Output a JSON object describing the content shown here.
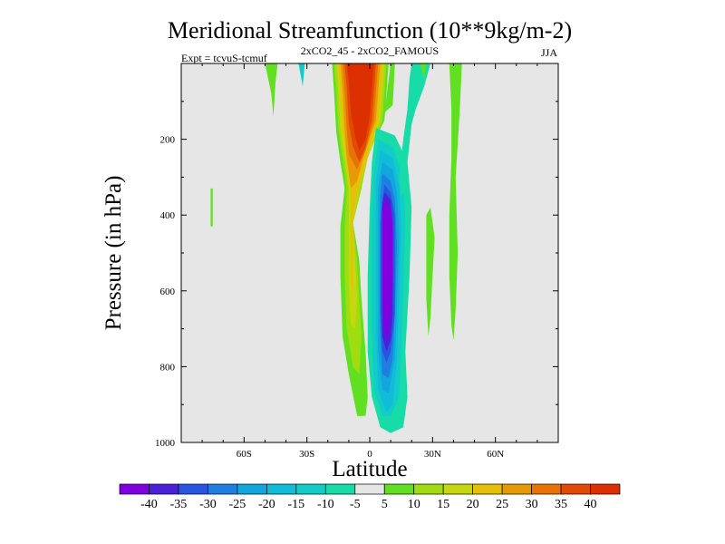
{
  "chart_data": {
    "type": "heatmap",
    "title": "Meridional Streamfunction (10**9kg/m-2)",
    "subtitle_left": "Expt = tcvuS-tcmuf",
    "subtitle_center": "2xCO2_45 - 2xCO2_FAMOUS",
    "subtitle_right": "JJA",
    "xlabel": "Latitude",
    "ylabel": "Pressure (in hPa)",
    "xlim": [
      -90,
      90
    ],
    "ylim": [
      1000,
      0
    ],
    "x_ticks": [
      {
        "value": -60,
        "label": "60S"
      },
      {
        "value": -30,
        "label": "30S"
      },
      {
        "value": 0,
        "label": "0"
      },
      {
        "value": 30,
        "label": "30N"
      },
      {
        "value": 60,
        "label": "60N"
      }
    ],
    "y_ticks": [
      {
        "value": 200,
        "label": "200"
      },
      {
        "value": 400,
        "label": "400"
      },
      {
        "value": 600,
        "label": "600"
      },
      {
        "value": 800,
        "label": "800"
      },
      {
        "value": 1000,
        "label": "1000"
      }
    ],
    "background_color": "#e6e6e6",
    "colorbar": {
      "levels": [
        "-40",
        "-35",
        "-30",
        "-25",
        "-20",
        "-15",
        "-10",
        "-5",
        "5",
        "10",
        "15",
        "20",
        "25",
        "30",
        "35",
        "40"
      ],
      "colors": [
        "#8000e0",
        "#4a20d8",
        "#2855e0",
        "#1f7fe0",
        "#12a6dc",
        "#10bcd8",
        "#12ccc8",
        "#18dca8",
        "#e6e6e6",
        "#60e020",
        "#a0dc10",
        "#c8d610",
        "#e6c008",
        "#e89a06",
        "#e87206",
        "#e24a04",
        "#dc3000"
      ]
    },
    "features": [
      {
        "name": "positive-cell-sh-upper",
        "polarity": "positive",
        "lat_range": [
          -25,
          8
        ],
        "p_range": [
          0,
          930
        ],
        "peak": 40,
        "peak_lat": -5,
        "peak_p": 100
      },
      {
        "name": "negative-cell-nh-mid",
        "polarity": "negative",
        "lat_range": [
          -5,
          22
        ],
        "p_range": [
          170,
          980
        ],
        "peak": -40,
        "peak_lat": 8,
        "peak_p": 550
      },
      {
        "name": "negative-streak-nh-upper",
        "polarity": "negative",
        "lat_range": [
          18,
          30
        ],
        "p_range": [
          0,
          350
        ],
        "peak": -10
      },
      {
        "name": "positive-streak-nh-mid",
        "polarity": "positive",
        "lat_range": [
          27,
          33
        ],
        "p_range": [
          400,
          720
        ],
        "peak": 5
      },
      {
        "name": "positive-streak-nh-upper",
        "polarity": "positive",
        "lat_range": [
          38,
          44
        ],
        "p_range": [
          0,
          730
        ],
        "peak": 5
      },
      {
        "name": "positive-streak-sh-upper",
        "polarity": "positive",
        "lat_range": [
          -50,
          -44
        ],
        "p_range": [
          0,
          140
        ],
        "peak": 5
      },
      {
        "name": "negative-streak-sh-upper",
        "polarity": "negative",
        "lat_range": [
          -34,
          -31
        ],
        "p_range": [
          0,
          60
        ],
        "peak": -10
      },
      {
        "name": "positive-streak-sh-mid",
        "polarity": "positive",
        "lat_range": [
          -76,
          -75
        ],
        "p_range": [
          330,
          430
        ],
        "peak": 5
      }
    ]
  }
}
